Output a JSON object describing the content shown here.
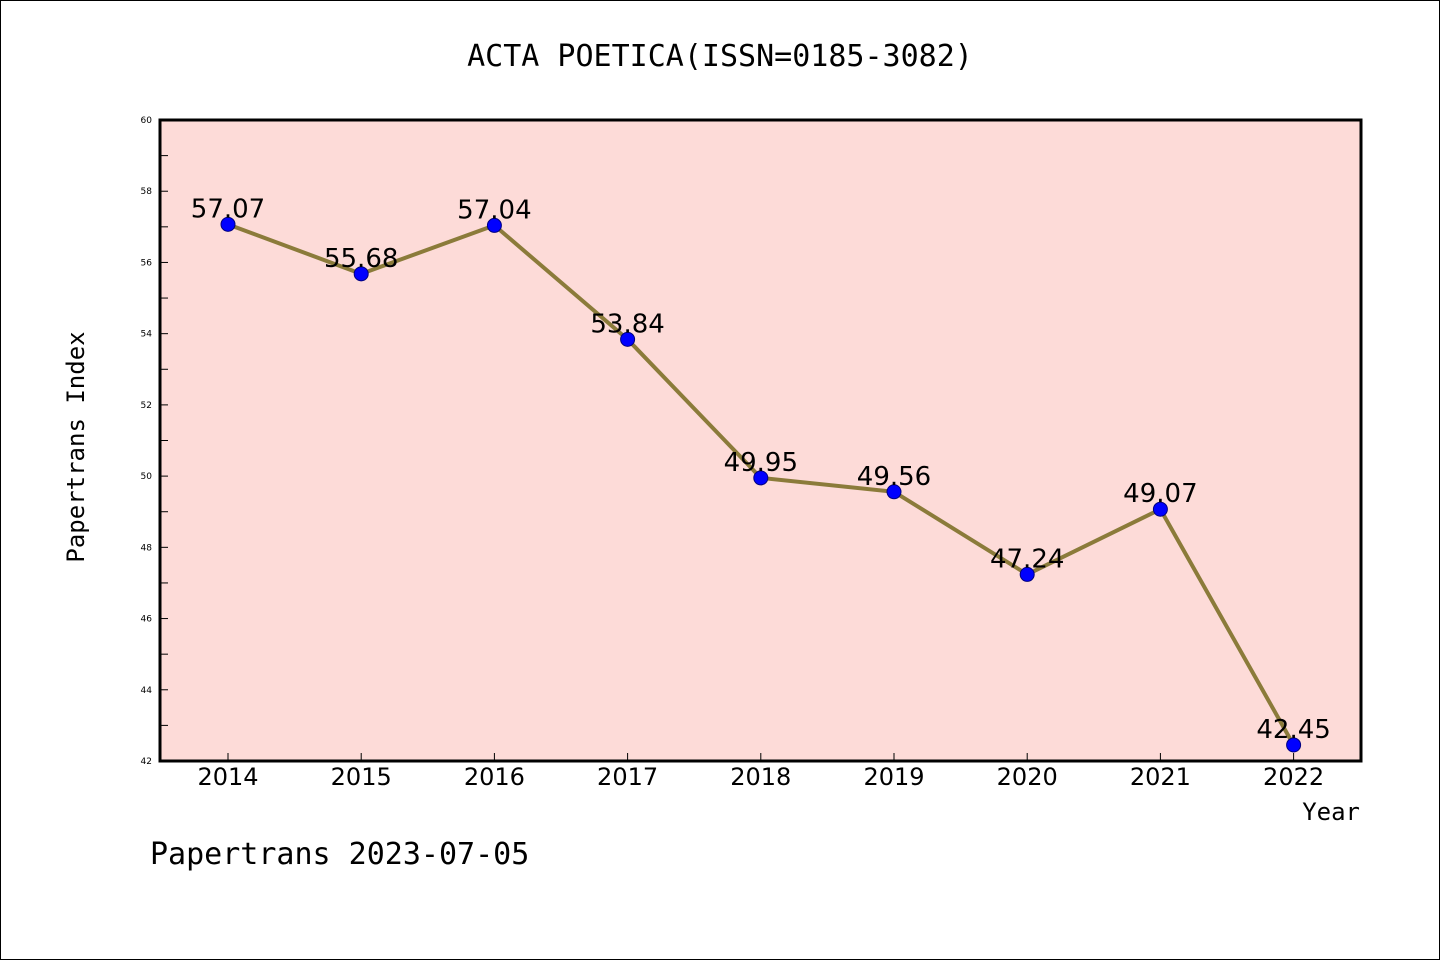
{
  "chart_data": {
    "type": "line",
    "title": "ACTA POETICA(ISSN=0185-3082)",
    "xlabel": "Year",
    "ylabel": "Papertrans Index",
    "categories": [
      "2014",
      "2015",
      "2016",
      "2017",
      "2018",
      "2019",
      "2020",
      "2021",
      "2022"
    ],
    "series": [
      {
        "values": [
          57.07,
          55.68,
          57.04,
          53.84,
          49.95,
          49.56,
          47.24,
          49.07,
          42.45
        ]
      }
    ],
    "data_labels": [
      "57.07",
      "55.68",
      "57.04",
      "53.84",
      "49.95",
      "49.56",
      "47.24",
      "49.07",
      "42.45"
    ],
    "ylim": [
      42,
      60
    ],
    "yticks": [
      "42",
      "44",
      "46",
      "48",
      "50",
      "52",
      "54",
      "56",
      "58",
      "60"
    ],
    "grid": false,
    "legend": "none",
    "colors": {
      "plot_background": "#fddbd8",
      "line": "#8b7b3a",
      "marker": "#0000ff",
      "marker_edge": "#000080",
      "frame": "#000000"
    }
  },
  "footer": {
    "text": "Papertrans 2023-07-05"
  }
}
